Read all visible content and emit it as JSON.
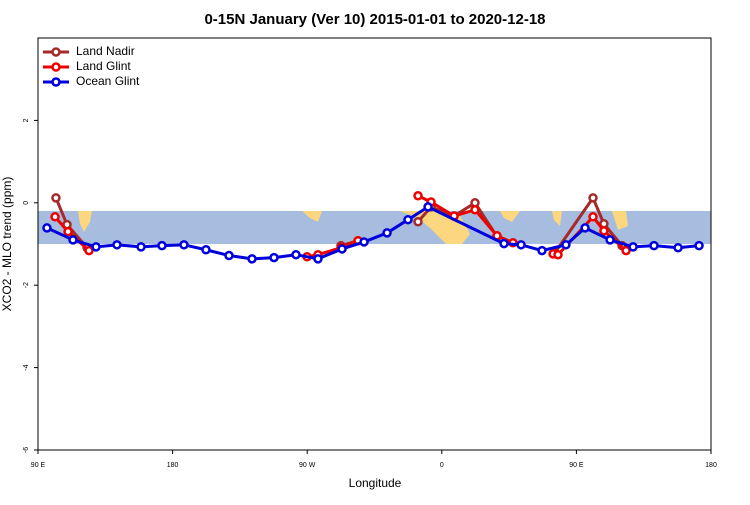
{
  "chart_data": {
    "type": "line",
    "title": "0-15N January (Ver 10)   2015-01-01 to 2020-12-18",
    "x_label": "Longitude",
    "y_label": "XCO2 - MLO trend (ppm)",
    "xlim": [
      90,
      540
    ],
    "xticks": [
      {
        "value": 90,
        "label": "90 E"
      },
      180,
      {
        "value": 270,
        "label": "90 W"
      },
      {
        "value": 360,
        "label": "0"
      },
      {
        "value": 450,
        "label": "90 E"
      },
      {
        "value": 540,
        "label": "180"
      }
    ],
    "ylim": [
      -6,
      4
    ],
    "yticks": [
      -6,
      -4,
      -2,
      0,
      2
    ],
    "legend": "top-left",
    "series": [
      {
        "name": "Land Nadir",
        "color": "#a52a2a",
        "x": [
          102,
          109.4,
          122.8,
          null,
          292.6,
          304,
          null,
          344.1,
          352.8,
          368.2,
          382.2,
          396.9,
          null,
          435.7,
          461.1,
          468.4,
          480.5
        ],
        "values": [
          0.12,
          -0.53,
          -1.09,
          null,
          -1.04,
          -0.92,
          null,
          -0.46,
          -0.1,
          -0.32,
          0,
          -0.82,
          null,
          -1.21,
          0.12,
          -0.51,
          -1.04
        ]
      },
      {
        "name": "Land Glint",
        "color": "#ee0000",
        "x": [
          101.4,
          110.1,
          124.1,
          null,
          269.9,
          277.2,
          292.6,
          304,
          null,
          344.1,
          352.8,
          368.2,
          382.2,
          396.9,
          407.6,
          null,
          434.4,
          437.7,
          461.1,
          468.4,
          483.2
        ],
        "values": [
          -0.34,
          -0.7,
          -1.16,
          null,
          -1.31,
          -1.26,
          -1.09,
          -0.92,
          null,
          0.17,
          0.02,
          -0.32,
          -0.17,
          -0.8,
          -0.97,
          null,
          -1.24,
          -1.26,
          -0.34,
          -0.68,
          -1.16
        ]
      },
      {
        "name": "Ocean Glint",
        "color": "#0000dd",
        "x": [
          96,
          113.4,
          128.8,
          142.8,
          158.9,
          172.9,
          187.6,
          202.3,
          217.7,
          233.1,
          247.8,
          262.5,
          277.2,
          293.3,
          308,
          323.4,
          337.4,
          350.8,
          401.6,
          413,
          427,
          443,
          455.8,
          472.5,
          487.9,
          501.9,
          518,
          532
        ],
        "values": [
          -0.61,
          -0.9,
          -1.07,
          -1.02,
          -1.07,
          -1.04,
          -1.02,
          -1.14,
          -1.28,
          -1.36,
          -1.33,
          -1.26,
          -1.36,
          -1.12,
          -0.95,
          -0.73,
          -0.41,
          -0.1,
          -0.99,
          -1.02,
          -1.16,
          -1.02,
          -0.61,
          -0.9,
          -1.07,
          -1.04,
          -1.09,
          -1.04
        ]
      }
    ]
  }
}
